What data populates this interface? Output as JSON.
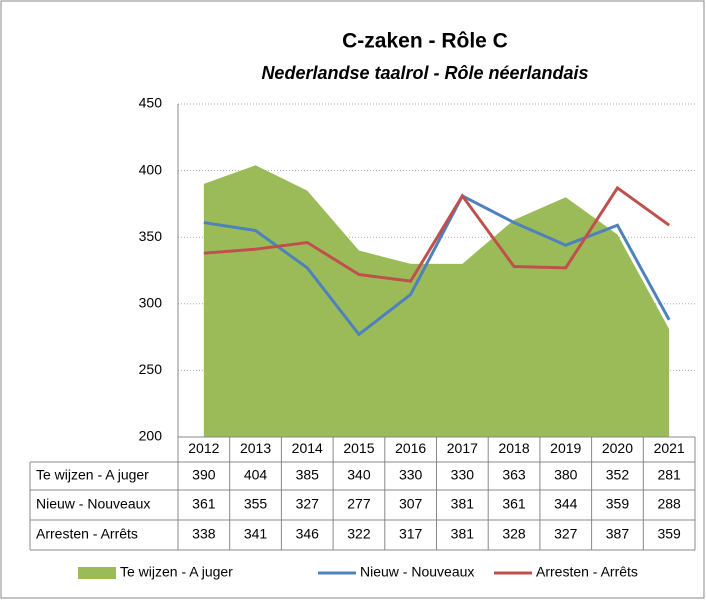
{
  "chart_data": {
    "type": "line",
    "title": "C-zaken - Rôle C",
    "subtitle": "Nederlandse taalrol - Rôle néerlandais",
    "categories": [
      "2012",
      "2013",
      "2014",
      "2015",
      "2016",
      "2017",
      "2018",
      "2019",
      "2020",
      "2021"
    ],
    "series": [
      {
        "name": "Te wijzen - A juger",
        "type": "area",
        "color": "#9bbb59",
        "values": [
          390,
          404,
          385,
          340,
          330,
          330,
          363,
          380,
          352,
          281
        ]
      },
      {
        "name": "Nieuw - Nouveaux",
        "type": "line",
        "color": "#4f81bd",
        "values": [
          361,
          355,
          327,
          277,
          307,
          381,
          361,
          344,
          359,
          288
        ]
      },
      {
        "name": "Arresten - Arrêts",
        "type": "line",
        "color": "#c0504d",
        "values": [
          338,
          341,
          346,
          322,
          317,
          381,
          328,
          327,
          387,
          359
        ]
      }
    ],
    "ylim": [
      200,
      450
    ],
    "yticks": [
      200,
      250,
      300,
      350,
      400,
      450
    ],
    "grid": true,
    "legend": "bottom"
  }
}
